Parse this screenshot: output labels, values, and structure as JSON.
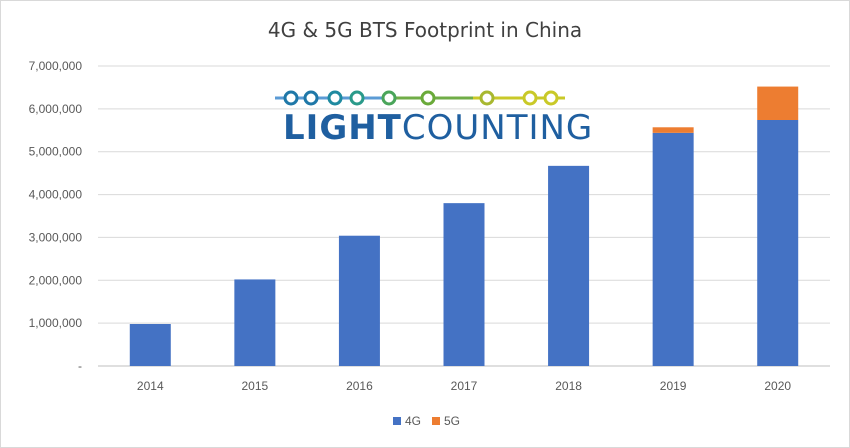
{
  "chart_data": {
    "type": "bar",
    "stacked": true,
    "title": "4G & 5G BTS Footprint in China",
    "categories": [
      "2014",
      "2015",
      "2016",
      "2017",
      "2018",
      "2019",
      "2020"
    ],
    "series": [
      {
        "name": "4G",
        "color": "#4472c4",
        "values": [
          980000,
          2020000,
          3040000,
          3800000,
          4670000,
          5440000,
          5740000
        ]
      },
      {
        "name": "5G",
        "color": "#ed7d31",
        "values": [
          0,
          0,
          0,
          0,
          0,
          130000,
          780000
        ]
      }
    ],
    "ylim": [
      0,
      7000000
    ],
    "yticks": [
      "-",
      "1,000,000",
      "2,000,000",
      "3,000,000",
      "4,000,000",
      "5,000,000",
      "6,000,000",
      "7,000,000"
    ],
    "grid": true,
    "legend": "bottom"
  },
  "logo": {
    "text_bold": "LIGHT",
    "text_regular": "COUNTING",
    "name": "LightCounting logo"
  }
}
